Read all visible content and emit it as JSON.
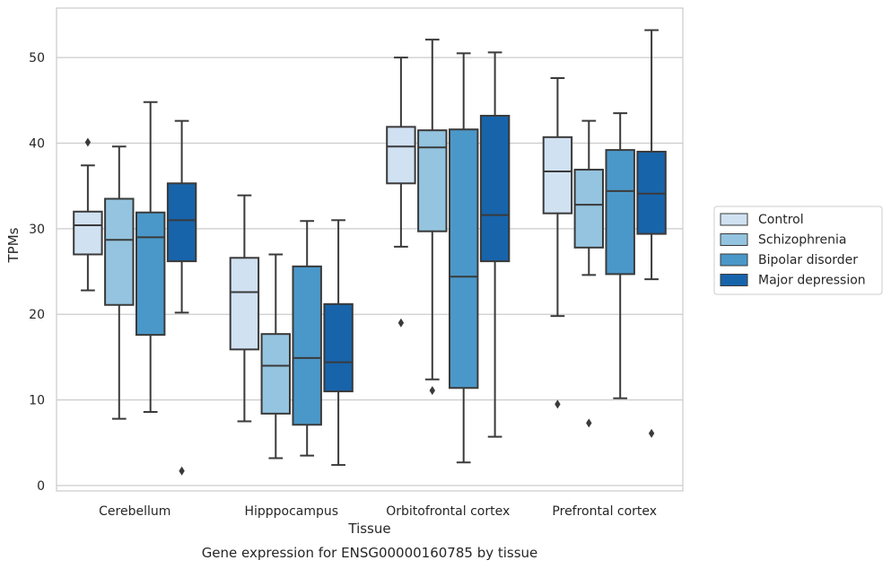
{
  "chart_data": {
    "type": "box",
    "caption": "Gene expression for ENSG00000160785 by tissue",
    "xlabel": "Tissue",
    "ylabel": "TPMs",
    "ylim": [
      0,
      55
    ],
    "yticks": [
      0,
      10,
      20,
      30,
      40,
      50
    ],
    "grid": "horizontal",
    "legend_position": "right",
    "categories": [
      "Cerebellum",
      "Hipppocampus",
      "Orbitofrontal cortex",
      "Prefrontal cortex"
    ],
    "series": [
      {
        "name": "Control",
        "color": "#d0e1f2",
        "boxes": [
          {
            "whisker_low": 22.8,
            "q1": 27.0,
            "median": 30.4,
            "q3": 32.0,
            "whisker_high": 37.4,
            "outliers": [
              40.1
            ]
          },
          {
            "whisker_low": 7.5,
            "q1": 15.9,
            "median": 22.6,
            "q3": 26.6,
            "whisker_high": 33.9,
            "outliers": []
          },
          {
            "whisker_low": 27.9,
            "q1": 35.3,
            "median": 39.6,
            "q3": 41.9,
            "whisker_high": 50.0,
            "outliers": [
              19.0
            ]
          },
          {
            "whisker_low": 19.8,
            "q1": 31.8,
            "median": 36.7,
            "q3": 40.7,
            "whisker_high": 47.6,
            "outliers": [
              9.5
            ]
          }
        ]
      },
      {
        "name": "Schizophrenia",
        "color": "#94c4df",
        "boxes": [
          {
            "whisker_low": 7.8,
            "q1": 21.1,
            "median": 28.7,
            "q3": 33.5,
            "whisker_high": 39.6,
            "outliers": []
          },
          {
            "whisker_low": 3.2,
            "q1": 8.4,
            "median": 14.0,
            "q3": 17.7,
            "whisker_high": 27.0,
            "outliers": []
          },
          {
            "whisker_low": 12.4,
            "q1": 29.7,
            "median": 39.5,
            "q3": 41.5,
            "whisker_high": 52.1,
            "outliers": [
              11.1
            ]
          },
          {
            "whisker_low": 24.6,
            "q1": 27.8,
            "median": 32.8,
            "q3": 36.9,
            "whisker_high": 42.6,
            "outliers": [
              7.3
            ]
          }
        ]
      },
      {
        "name": "Bipolar disorder",
        "color": "#4a98c9",
        "boxes": [
          {
            "whisker_low": 8.6,
            "q1": 17.6,
            "median": 29.0,
            "q3": 31.9,
            "whisker_high": 44.8,
            "outliers": []
          },
          {
            "whisker_low": 3.5,
            "q1": 7.1,
            "median": 14.9,
            "q3": 25.6,
            "whisker_high": 30.9,
            "outliers": []
          },
          {
            "whisker_low": 2.7,
            "q1": 11.4,
            "median": 24.4,
            "q3": 41.6,
            "whisker_high": 50.5,
            "outliers": []
          },
          {
            "whisker_low": 10.2,
            "q1": 24.7,
            "median": 34.4,
            "q3": 39.2,
            "whisker_high": 43.5,
            "outliers": []
          }
        ]
      },
      {
        "name": "Major depression",
        "color": "#1764ab",
        "boxes": [
          {
            "whisker_low": 20.2,
            "q1": 26.2,
            "median": 31.0,
            "q3": 35.3,
            "whisker_high": 42.6,
            "outliers": [
              1.7
            ]
          },
          {
            "whisker_low": 2.4,
            "q1": 11.0,
            "median": 14.4,
            "q3": 21.2,
            "whisker_high": 31.0,
            "outliers": []
          },
          {
            "whisker_low": 5.7,
            "q1": 26.2,
            "median": 31.6,
            "q3": 43.2,
            "whisker_high": 50.6,
            "outliers": []
          },
          {
            "whisker_low": 24.1,
            "q1": 29.4,
            "median": 34.1,
            "q3": 39.0,
            "whisker_high": 53.2,
            "outliers": [
              6.1
            ]
          }
        ]
      }
    ]
  }
}
